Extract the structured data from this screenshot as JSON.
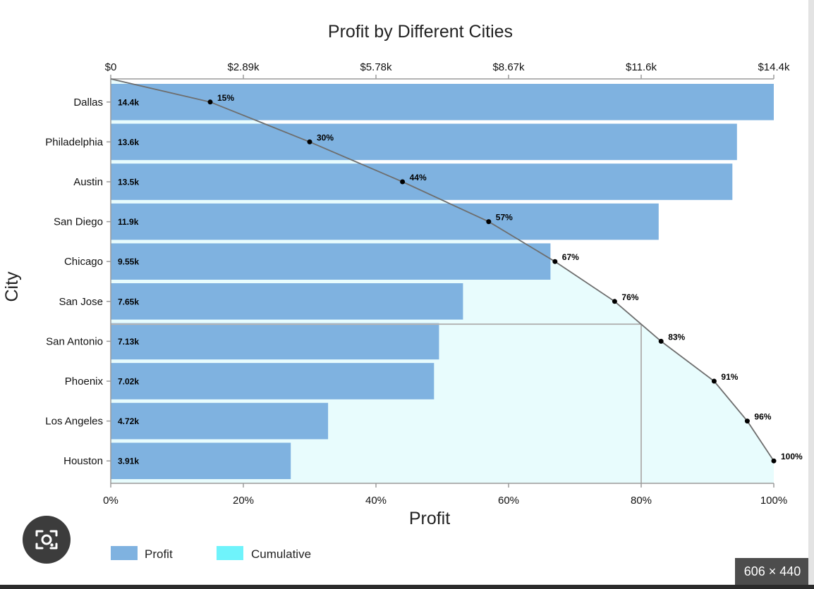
{
  "chart_data": {
    "type": "bar",
    "orientation": "horizontal",
    "title": "Profit by Different Cities",
    "xlabel": "Profit",
    "ylabel": "City",
    "categories": [
      "Dallas",
      "Philadelphia",
      "Austin",
      "San Diego",
      "Chicago",
      "San Jose",
      "San Antonio",
      "Phoenix",
      "Los Angeles",
      "Houston"
    ],
    "series": [
      {
        "name": "Profit",
        "values": [
          14400,
          13600,
          13500,
          11900,
          9550,
          7650,
          7130,
          7020,
          4720,
          3910
        ],
        "labels": [
          "14.4k",
          "13.6k",
          "13.5k",
          "11.9k",
          "9.55k",
          "7.65k",
          "7.13k",
          "7.02k",
          "4.72k",
          "3.91k"
        ],
        "color": "#7fb2e0"
      },
      {
        "name": "Cumulative",
        "values": [
          15,
          30,
          44,
          57,
          67,
          76,
          83,
          91,
          96,
          100
        ],
        "labels": [
          "15%",
          "30%",
          "44%",
          "57%",
          "67%",
          "76%",
          "83%",
          "91%",
          "96%",
          "100%"
        ],
        "color": "#e8fcfd",
        "legend_color": "#6ff3fb"
      }
    ],
    "top_axis": {
      "range": [
        0,
        14400
      ],
      "ticks": [
        0,
        2890,
        5780,
        8670,
        11600,
        14400
      ],
      "tick_labels": [
        "$0",
        "$2.89k",
        "$5.78k",
        "$8.67k",
        "$11.6k",
        "$14.4k"
      ]
    },
    "bottom_axis": {
      "range": [
        0,
        100
      ],
      "ticks": [
        0,
        20,
        40,
        60,
        80,
        100
      ],
      "tick_labels": [
        "0%",
        "20%",
        "40%",
        "60%",
        "80%",
        "100%"
      ]
    },
    "reference_lines": {
      "x_percent": 80,
      "cumulative_value": 80
    },
    "legend": [
      "Profit",
      "Cumulative"
    ],
    "legend_position": "bottom-left",
    "grid": false
  },
  "overlay": {
    "lens_icon": "camera-search-icon",
    "size_badge": "606 × 440"
  }
}
